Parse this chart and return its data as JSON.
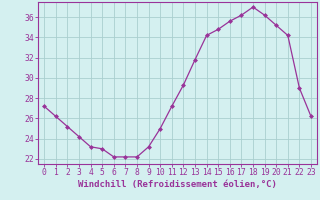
{
  "x": [
    0,
    1,
    2,
    3,
    4,
    5,
    6,
    7,
    8,
    9,
    10,
    11,
    12,
    13,
    14,
    15,
    16,
    17,
    18,
    19,
    20,
    21,
    22,
    23
  ],
  "y": [
    27.2,
    26.2,
    25.2,
    24.2,
    23.2,
    23.0,
    22.2,
    22.2,
    22.2,
    23.2,
    25.0,
    27.2,
    29.3,
    31.8,
    34.2,
    34.8,
    35.6,
    36.2,
    37.0,
    36.2,
    35.2,
    34.2,
    29.0,
    26.2
  ],
  "line_color": "#993399",
  "marker": "D",
  "marker_size": 2.0,
  "bg_color": "#d4f0f0",
  "grid_color": "#aacfcf",
  "xlabel": "Windchill (Refroidissement éolien,°C)",
  "xlabel_color": "#993399",
  "tick_color": "#993399",
  "axis_color": "#993399",
  "ylim": [
    21.5,
    37.5
  ],
  "yticks": [
    22,
    24,
    26,
    28,
    30,
    32,
    34,
    36
  ],
  "xticks": [
    0,
    1,
    2,
    3,
    4,
    5,
    6,
    7,
    8,
    9,
    10,
    11,
    12,
    13,
    14,
    15,
    16,
    17,
    18,
    19,
    20,
    21,
    22,
    23
  ],
  "xlabel_fontsize": 6.5,
  "tick_fontsize": 5.8,
  "linewidth": 0.9
}
